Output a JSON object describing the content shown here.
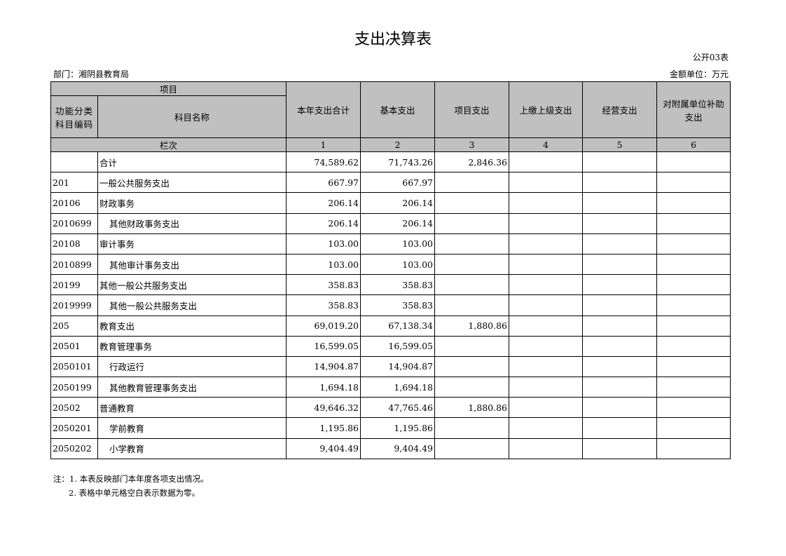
{
  "title": "支出决算表",
  "form_no": "公开03表",
  "department": "部门：湘阴县教育局",
  "unit": "金额单位：万元",
  "header": {
    "project": "项目",
    "code": "功能分类科目编码",
    "name": "科目名称",
    "columns": [
      "本年支出合计",
      "基本支出",
      "项目支出",
      "上缴上级支出",
      "经营支出",
      "对附属单位补助支出"
    ],
    "row_index_label": "栏次",
    "column_numbers": [
      "1",
      "2",
      "3",
      "4",
      "5",
      "6"
    ]
  },
  "rows": [
    {
      "code": "",
      "name": "合计",
      "indent": false,
      "values": [
        "74,589.62",
        "71,743.26",
        "2,846.36",
        "",
        "",
        ""
      ]
    },
    {
      "code": "201",
      "name": "一般公共服务支出",
      "indent": false,
      "values": [
        "667.97",
        "667.97",
        "",
        "",
        "",
        ""
      ]
    },
    {
      "code": "20106",
      "name": "财政事务",
      "indent": false,
      "values": [
        "206.14",
        "206.14",
        "",
        "",
        "",
        ""
      ]
    },
    {
      "code": "2010699",
      "name": "其他财政事务支出",
      "indent": true,
      "values": [
        "206.14",
        "206.14",
        "",
        "",
        "",
        ""
      ]
    },
    {
      "code": "20108",
      "name": "审计事务",
      "indent": false,
      "values": [
        "103.00",
        "103.00",
        "",
        "",
        "",
        ""
      ]
    },
    {
      "code": "2010899",
      "name": "其他审计事务支出",
      "indent": true,
      "values": [
        "103.00",
        "103.00",
        "",
        "",
        "",
        ""
      ]
    },
    {
      "code": "20199",
      "name": "其他一般公共服务支出",
      "indent": false,
      "values": [
        "358.83",
        "358.83",
        "",
        "",
        "",
        ""
      ]
    },
    {
      "code": "2019999",
      "name": "其他一般公共服务支出",
      "indent": true,
      "values": [
        "358.83",
        "358.83",
        "",
        "",
        "",
        ""
      ]
    },
    {
      "code": "205",
      "name": "教育支出",
      "indent": false,
      "values": [
        "69,019.20",
        "67,138.34",
        "1,880.86",
        "",
        "",
        ""
      ]
    },
    {
      "code": "20501",
      "name": "教育管理事务",
      "indent": false,
      "values": [
        "16,599.05",
        "16,599.05",
        "",
        "",
        "",
        ""
      ]
    },
    {
      "code": "2050101",
      "name": "行政运行",
      "indent": true,
      "values": [
        "14,904.87",
        "14,904.87",
        "",
        "",
        "",
        ""
      ]
    },
    {
      "code": "2050199",
      "name": "其他教育管理事务支出",
      "indent": true,
      "values": [
        "1,694.18",
        "1,694.18",
        "",
        "",
        "",
        ""
      ]
    },
    {
      "code": "20502",
      "name": "普通教育",
      "indent": false,
      "values": [
        "49,646.32",
        "47,765.46",
        "1,880.86",
        "",
        "",
        ""
      ]
    },
    {
      "code": "2050201",
      "name": "学前教育",
      "indent": true,
      "values": [
        "1,195.86",
        "1,195.86",
        "",
        "",
        "",
        ""
      ]
    },
    {
      "code": "2050202",
      "name": "小学教育",
      "indent": true,
      "values": [
        "9,404.49",
        "9,404.49",
        "",
        "",
        "",
        ""
      ]
    }
  ],
  "notes": [
    "注：1. 本表反映部门本年度各项支出情况。",
    "2. 表格中单元格空白表示数据为零。"
  ],
  "colors": {
    "header_bg": "#c0c0c0",
    "border": "#000000"
  }
}
